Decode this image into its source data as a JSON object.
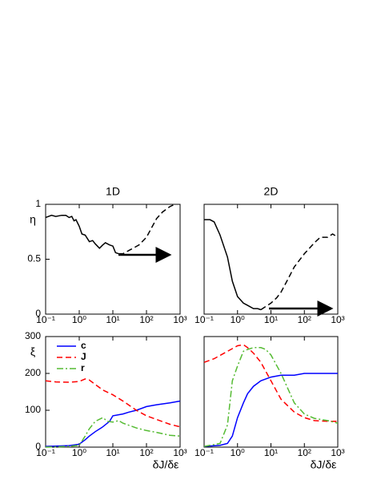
{
  "chart_data": [
    {
      "type": "line",
      "title": "1D",
      "ylabel": "η",
      "xscale": "log",
      "xlim": [
        0.1,
        1000
      ],
      "xticks": [
        {
          "value": 0.1,
          "label": "10⁻¹"
        },
        {
          "value": 1,
          "label": "10⁰"
        },
        {
          "value": 10,
          "label": "10¹"
        },
        {
          "value": 100,
          "label": "10²"
        },
        {
          "value": 1000,
          "label": "10³"
        }
      ],
      "ylim": [
        0,
        1
      ],
      "yticks": [
        0,
        0.5,
        1
      ],
      "series": [
        {
          "color": "#000000",
          "style": "solid",
          "x": [
            0.1,
            0.15,
            0.2,
            0.3,
            0.4,
            0.5,
            0.6,
            0.7,
            0.8,
            1,
            1.2,
            1.5,
            2,
            2.5,
            3,
            4,
            5,
            6,
            8,
            10,
            12,
            15
          ],
          "values": [
            0.88,
            0.9,
            0.89,
            0.9,
            0.9,
            0.88,
            0.89,
            0.85,
            0.86,
            0.8,
            0.73,
            0.72,
            0.66,
            0.67,
            0.64,
            0.6,
            0.63,
            0.65,
            0.63,
            0.62,
            0.56,
            0.55
          ]
        },
        {
          "color": "#000000",
          "style": "dashed",
          "x": [
            15,
            20,
            30,
            40,
            60,
            80,
            100,
            150,
            200,
            300,
            500,
            700
          ],
          "values": [
            0.55,
            0.55,
            0.58,
            0.6,
            0.63,
            0.67,
            0.7,
            0.8,
            0.87,
            0.93,
            0.98,
            1.0
          ]
        }
      ]
    },
    {
      "type": "line",
      "title": "2D",
      "xscale": "log",
      "xlim": [
        0.1,
        1000
      ],
      "xticks": [
        {
          "value": 0.1,
          "label": "10⁻¹"
        },
        {
          "value": 1,
          "label": "10⁰"
        },
        {
          "value": 10,
          "label": "10¹"
        },
        {
          "value": 100,
          "label": "10²"
        },
        {
          "value": 1000,
          "label": "10³"
        }
      ],
      "ylim": [
        0,
        1
      ],
      "series": [
        {
          "color": "#000000",
          "style": "solid",
          "x": [
            0.1,
            0.15,
            0.2,
            0.3,
            0.5,
            0.7,
            1,
            1.5,
            2,
            3,
            4,
            5
          ],
          "values": [
            0.86,
            0.86,
            0.84,
            0.72,
            0.52,
            0.3,
            0.16,
            0.1,
            0.08,
            0.05,
            0.05,
            0.04
          ]
        },
        {
          "color": "#000000",
          "style": "dashed",
          "x": [
            5,
            7,
            10,
            15,
            20,
            30,
            50,
            100,
            200,
            300,
            500,
            700,
            1000
          ],
          "values": [
            0.04,
            0.07,
            0.1,
            0.15,
            0.2,
            0.3,
            0.43,
            0.55,
            0.65,
            0.7,
            0.7,
            0.73,
            0.7
          ]
        }
      ]
    },
    {
      "type": "line",
      "ylabel": "ξ",
      "xlabel": "δJ/δε",
      "xscale": "log",
      "legend": "upper left",
      "xlim": [
        0.1,
        1000
      ],
      "xticks": [
        {
          "value": 0.1,
          "label": "10⁻¹"
        },
        {
          "value": 1,
          "label": "10⁰"
        },
        {
          "value": 10,
          "label": "10¹"
        },
        {
          "value": 100,
          "label": "10²"
        },
        {
          "value": 1000,
          "label": "10³"
        }
      ],
      "ylim": [
        0,
        300
      ],
      "yticks": [
        0,
        100,
        200,
        300
      ],
      "series": [
        {
          "name": "c",
          "color": "#0000ff",
          "style": "solid",
          "x": [
            0.1,
            0.5,
            1,
            1.5,
            2,
            3,
            5,
            8,
            10,
            20,
            30,
            50,
            100,
            200,
            500,
            1000
          ],
          "values": [
            2,
            4,
            8,
            20,
            30,
            42,
            55,
            70,
            85,
            90,
            95,
            100,
            110,
            115,
            120,
            125
          ]
        },
        {
          "name": "J",
          "color": "#ff0000",
          "style": "dashed",
          "x": [
            0.1,
            0.2,
            0.5,
            1,
            1.5,
            2,
            3,
            5,
            10,
            20,
            50,
            100,
            200,
            500,
            1000
          ],
          "values": [
            180,
            177,
            176,
            178,
            185,
            182,
            170,
            155,
            142,
            125,
            100,
            85,
            75,
            62,
            55
          ]
        },
        {
          "name": "r",
          "color": "#55bb33",
          "style": "dashdot",
          "x": [
            0.1,
            0.5,
            1,
            1.5,
            2,
            3,
            5,
            7,
            10,
            15,
            20,
            50,
            100,
            200,
            500,
            1000
          ],
          "values": [
            0,
            2,
            5,
            30,
            50,
            70,
            80,
            70,
            68,
            72,
            65,
            52,
            45,
            40,
            32,
            30
          ]
        }
      ]
    },
    {
      "type": "line",
      "xlabel": "δJ/δε",
      "xscale": "log",
      "xlim": [
        0.1,
        1000
      ],
      "xticks": [
        {
          "value": 0.1,
          "label": "10⁻¹"
        },
        {
          "value": 1,
          "label": "10⁰"
        },
        {
          "value": 10,
          "label": "10¹"
        },
        {
          "value": 100,
          "label": "10²"
        },
        {
          "value": 1000,
          "label": "10³"
        }
      ],
      "ylim": [
        0,
        300
      ],
      "series": [
        {
          "color": "#0000ff",
          "style": "solid",
          "x": [
            0.1,
            0.3,
            0.5,
            0.7,
            1,
            1.5,
            2,
            3,
            5,
            10,
            20,
            50,
            100,
            200,
            500,
            1000
          ],
          "values": [
            2,
            5,
            10,
            30,
            80,
            120,
            145,
            165,
            180,
            190,
            195,
            195,
            200,
            200,
            200,
            200
          ]
        },
        {
          "color": "#ff0000",
          "style": "dashed",
          "x": [
            0.1,
            0.2,
            0.5,
            1,
            1.5,
            2,
            3,
            5,
            10,
            20,
            50,
            100,
            200,
            500,
            1000
          ],
          "values": [
            230,
            240,
            260,
            275,
            278,
            270,
            255,
            230,
            180,
            130,
            95,
            80,
            72,
            70,
            70
          ]
        },
        {
          "color": "#55bb33",
          "style": "dashdot",
          "x": [
            0.1,
            0.3,
            0.5,
            0.7,
            1,
            1.5,
            2,
            3,
            5,
            7,
            10,
            20,
            50,
            100,
            200,
            500,
            1000
          ],
          "values": [
            2,
            10,
            60,
            180,
            220,
            260,
            265,
            270,
            270,
            265,
            250,
            200,
            120,
            90,
            78,
            72,
            65
          ]
        }
      ]
    }
  ]
}
